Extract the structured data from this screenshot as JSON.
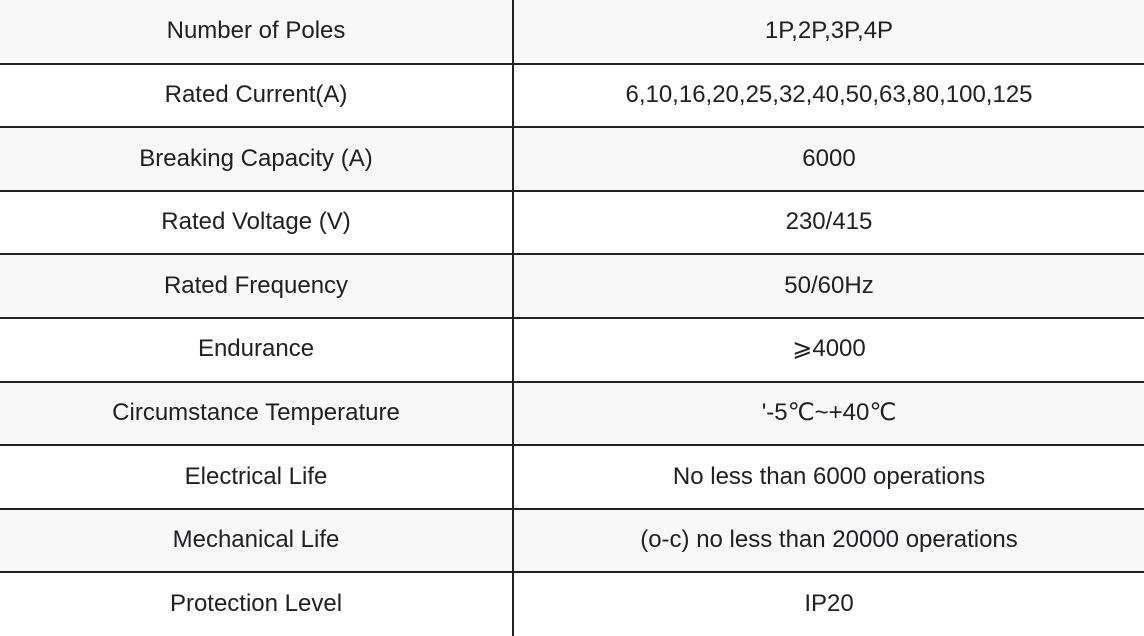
{
  "table": {
    "name": "circuit-breaker-specifications",
    "columns": [
      "parameter",
      "value"
    ],
    "rows": [
      {
        "label": "Number of Poles",
        "value": "1P,2P,3P,4P"
      },
      {
        "label": "Rated Current(A)",
        "value": "6,10,16,20,25,32,40,50,63,80,100,125"
      },
      {
        "label": "Breaking Capacity (A)",
        "value": "6000"
      },
      {
        "label": "Rated Voltage (V)",
        "value": "230/415"
      },
      {
        "label": "Rated Frequency",
        "value": "50/60Hz"
      },
      {
        "label": "Endurance",
        "value": "⩾4000"
      },
      {
        "label": "Circumstance Temperature",
        "value": "'-5℃~+40℃"
      },
      {
        "label": "Electrical Life",
        "value": "No less than 6000 operations"
      },
      {
        "label": "Mechanical Life",
        "value": "(o-c) no less than 20000 operations"
      },
      {
        "label": "Protection Level",
        "value": "IP20"
      }
    ]
  },
  "colors": {
    "border": "#222222",
    "row_alt_background": "#f8f8f8",
    "row_background": "#ffffff",
    "text": "#202124"
  }
}
